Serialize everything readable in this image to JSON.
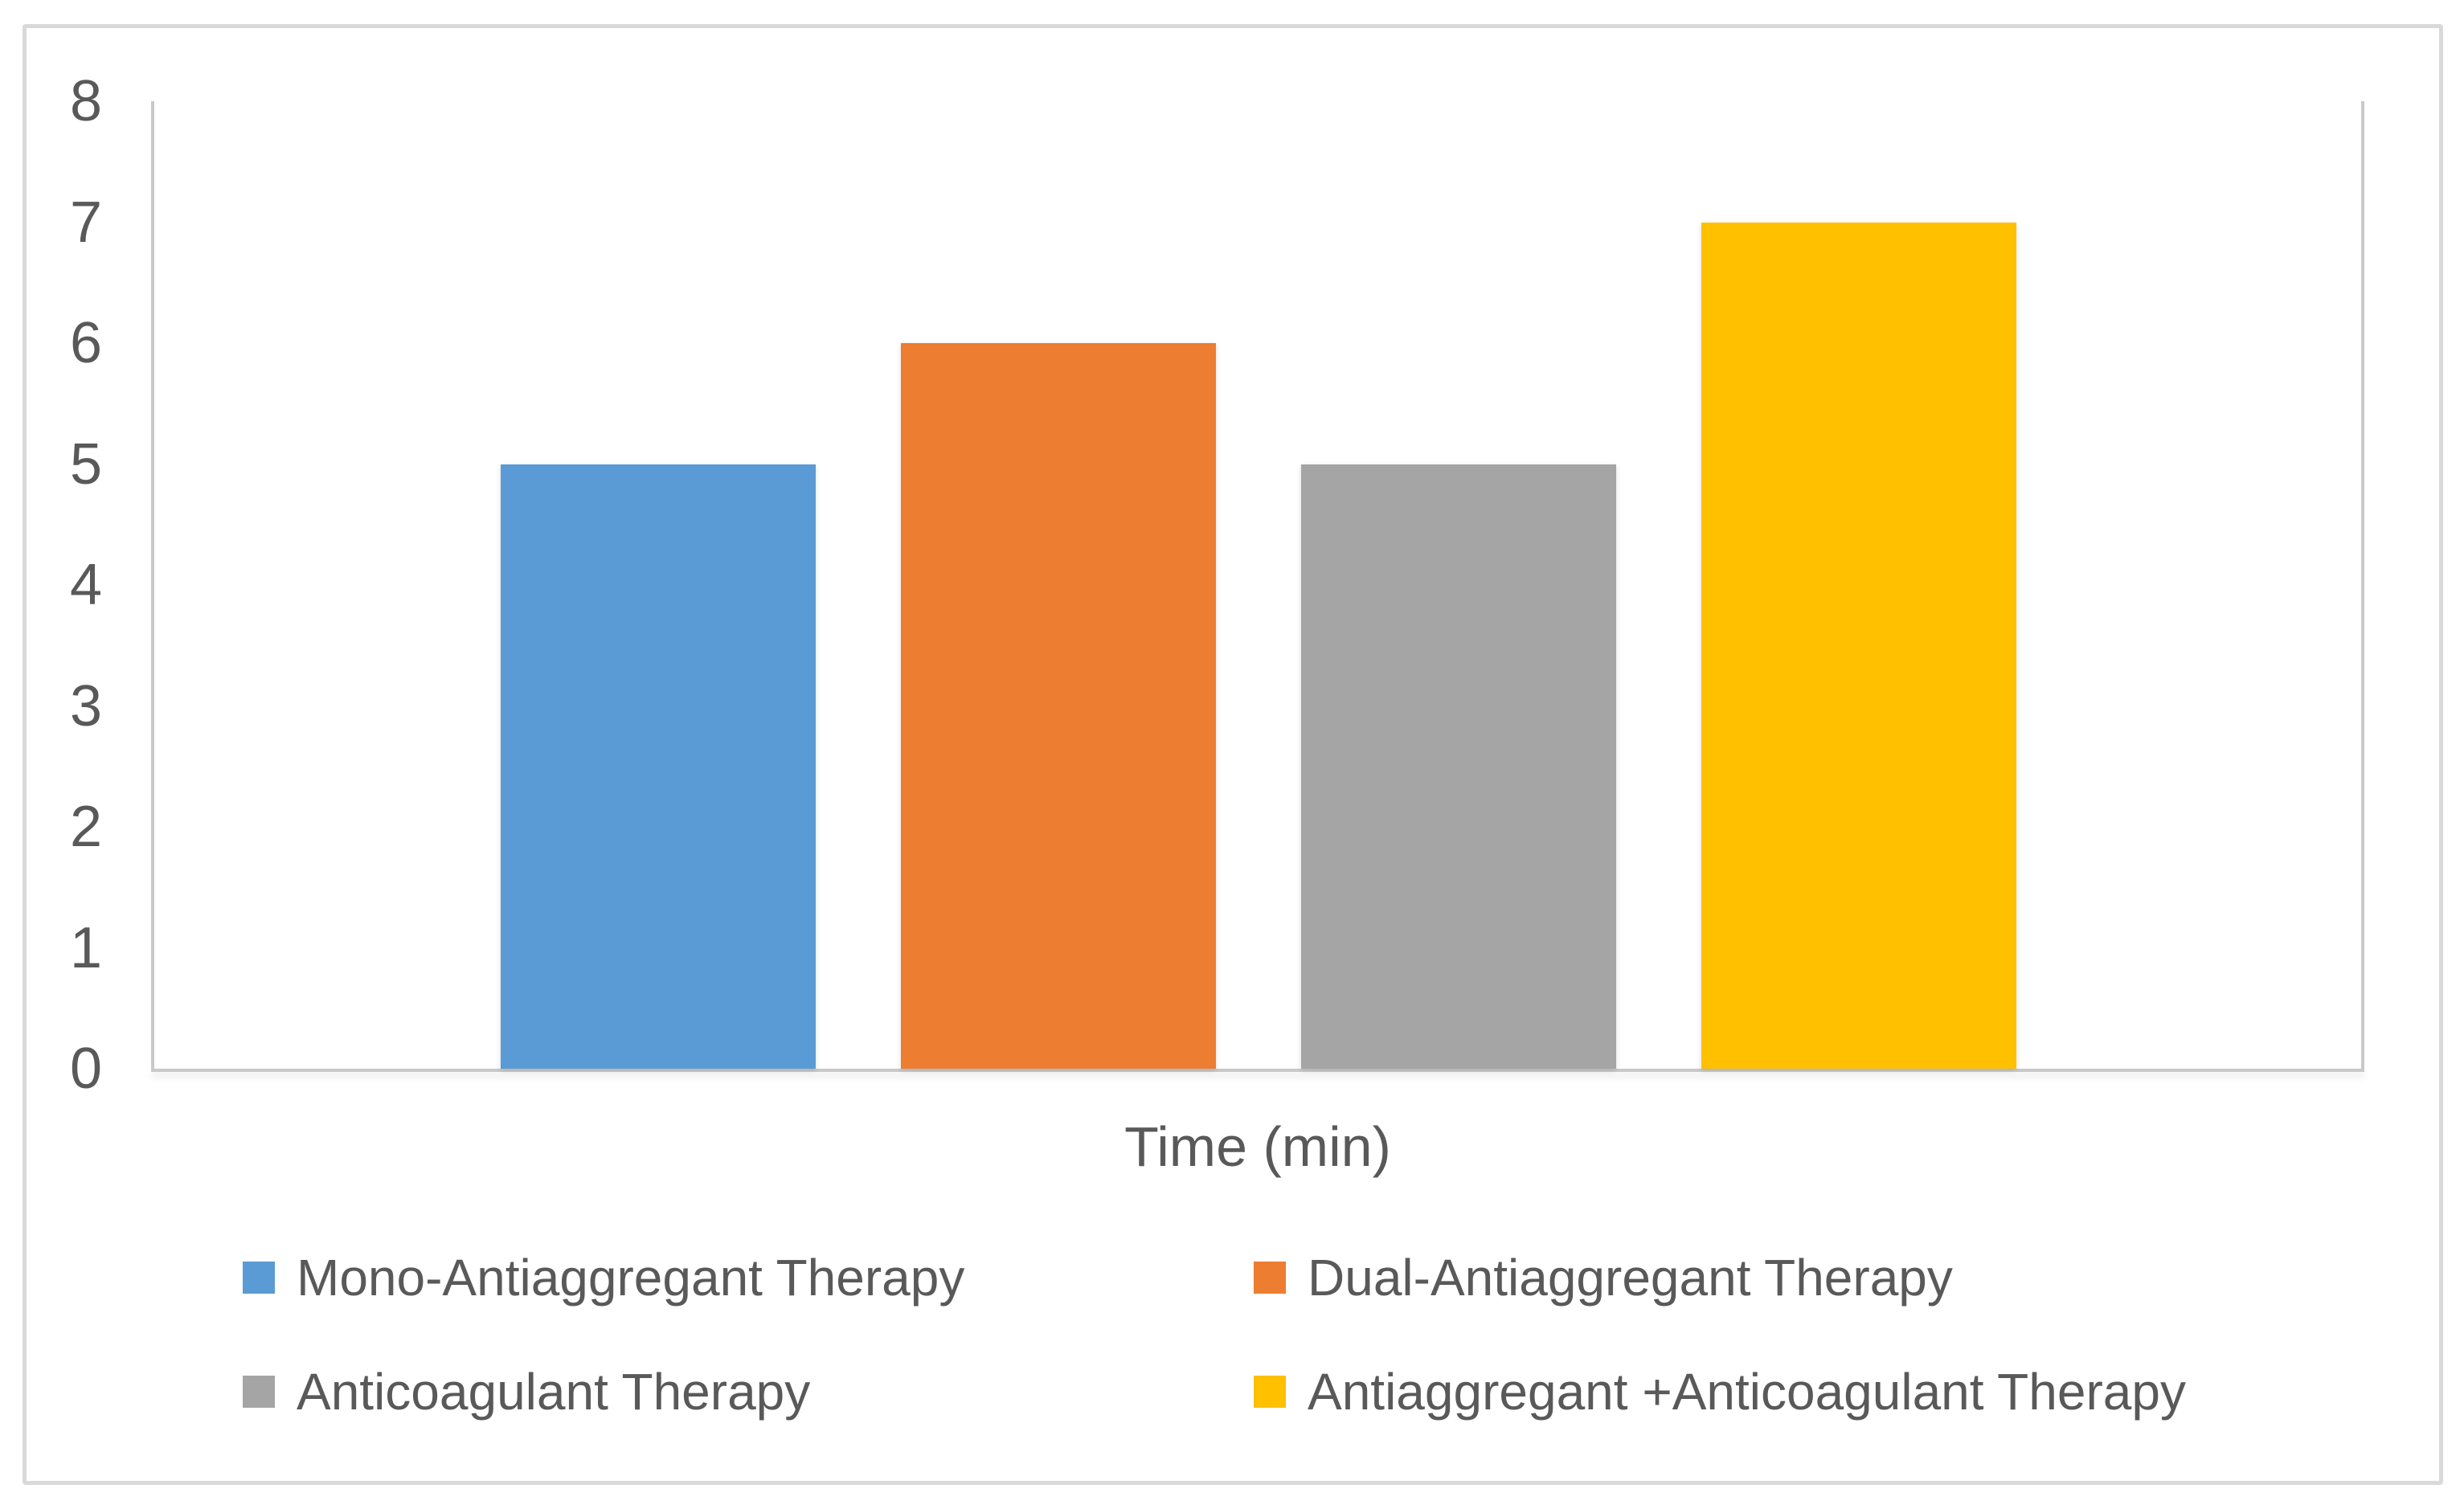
{
  "chart_data": {
    "type": "bar",
    "title": "",
    "xlabel": "Time (min)",
    "ylabel": "",
    "ylim": [
      0,
      8
    ],
    "yticks": [
      8,
      7,
      6,
      5,
      4,
      3,
      2,
      1,
      0
    ],
    "grid": false,
    "legend_position": "bottom",
    "categories": [
      "Time (min)"
    ],
    "series": [
      {
        "name": "Mono-Antiaggregant Therapy",
        "slug": "mono-antiaggregant-therapy",
        "color": "#5B9BD5",
        "values": [
          5
        ]
      },
      {
        "name": "Dual-Antiaggregant Therapy",
        "slug": "dual-antiaggregant-therapy",
        "color": "#ED7D31",
        "values": [
          6
        ]
      },
      {
        "name": "Anticoagulant Therapy",
        "slug": "anticoagulant-therapy",
        "color": "#A5A5A5",
        "values": [
          5
        ]
      },
      {
        "name": "Antiaggregant +Anticoagulant Therapy",
        "slug": "antiaggregant-anticoagulant-therapy",
        "color": "#FFC000",
        "values": [
          7
        ]
      }
    ]
  }
}
